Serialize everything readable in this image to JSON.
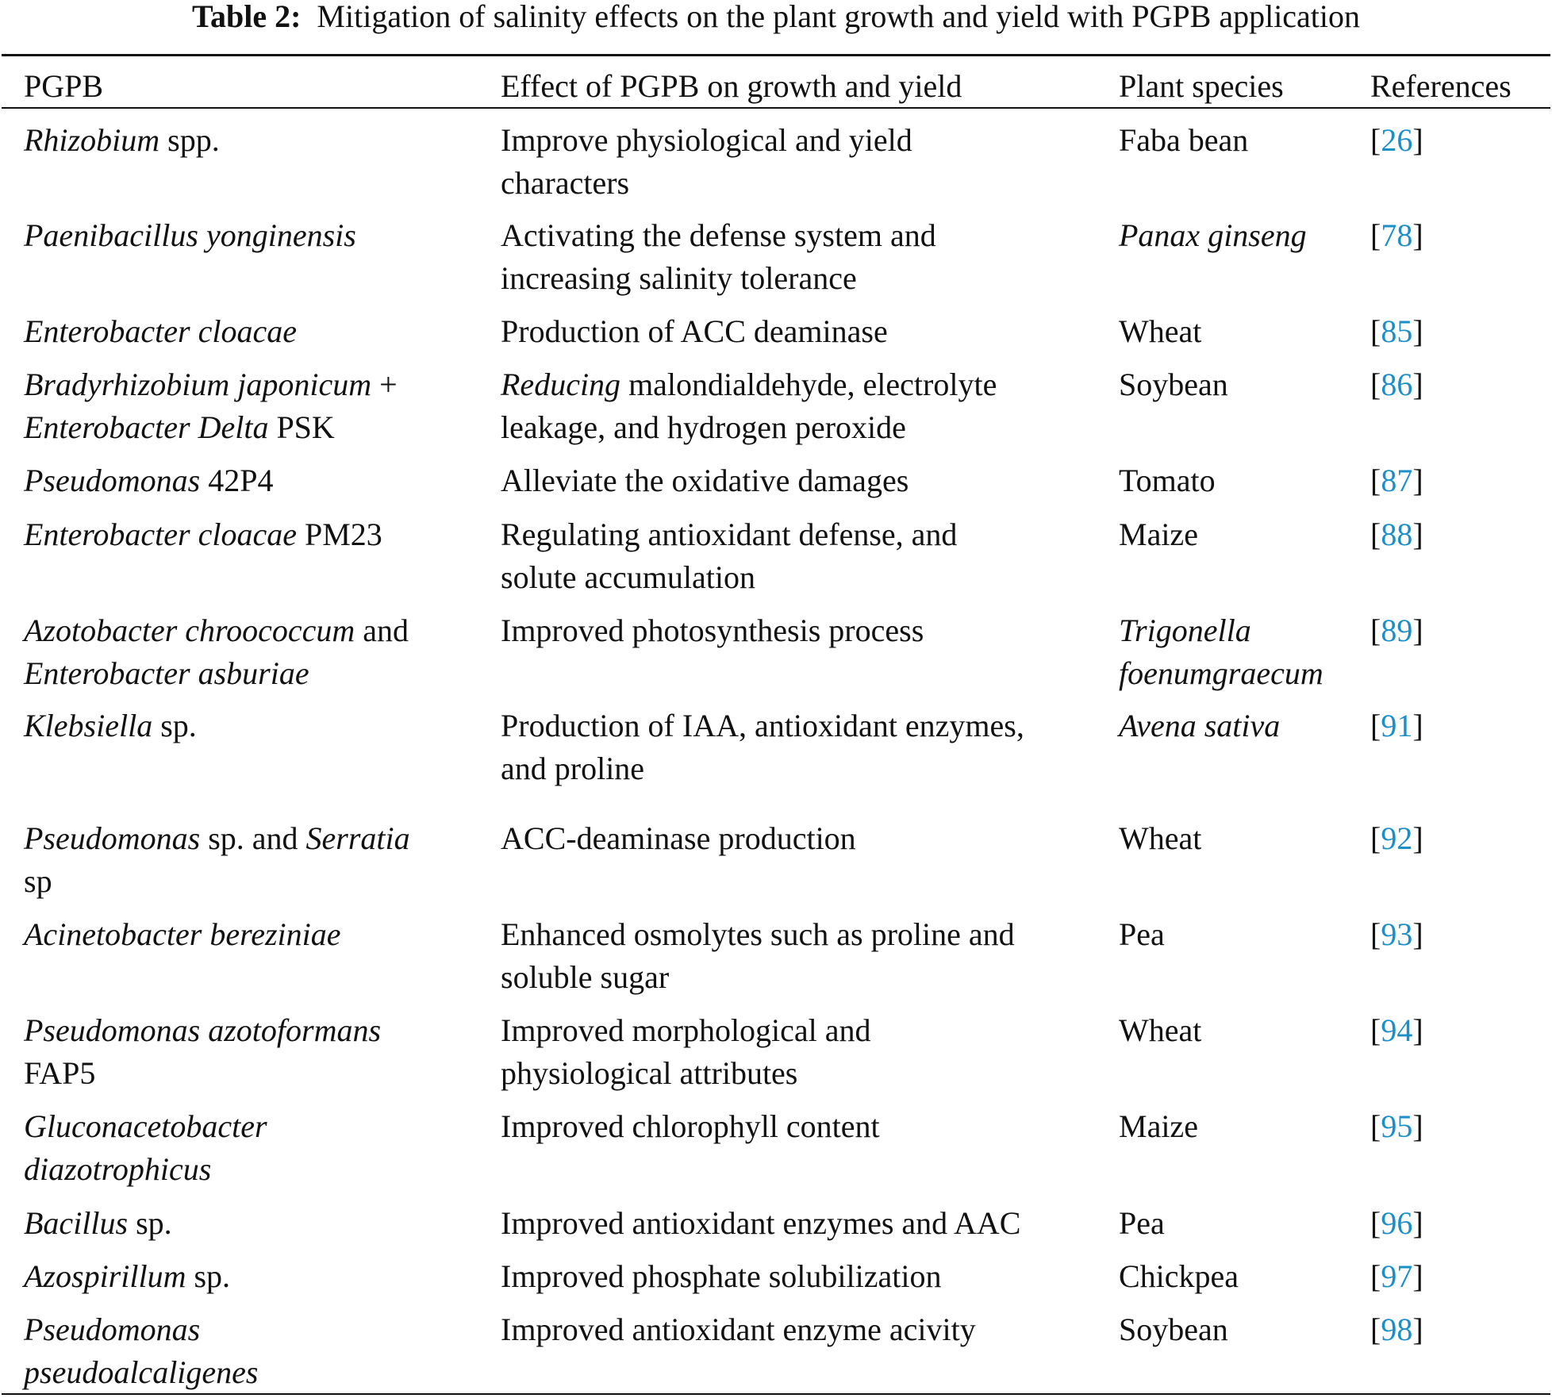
{
  "title": {
    "label": "Table 2:",
    "text": "Mitigation of salinity effects on the plant growth and yield with PGPB application"
  },
  "colors": {
    "reference_link": "#1a8fc9",
    "text": "#111111"
  },
  "headers": [
    "PGPB",
    "Effect of PGPB on growth and yield",
    "Plant species",
    "References"
  ],
  "rows": [
    {
      "pgpb": [
        [
          {
            "t": "Rhizobium",
            "i": true
          },
          {
            "t": " spp."
          }
        ]
      ],
      "effect": [
        [
          {
            "t": "Improve physiological and yield"
          }
        ],
        [
          {
            "t": "characters"
          }
        ]
      ],
      "species": [
        [
          {
            "t": "Faba bean"
          }
        ]
      ],
      "ref": "26"
    },
    {
      "pgpb": [
        [
          {
            "t": "Paenibacillus yonginensis",
            "i": true
          }
        ]
      ],
      "effect": [
        [
          {
            "t": "Activating the defense system and"
          }
        ],
        [
          {
            "t": "increasing salinity tolerance"
          }
        ]
      ],
      "species": [
        [
          {
            "t": "Panax ginseng",
            "i": true
          }
        ]
      ],
      "ref": "78"
    },
    {
      "pgpb": [
        [
          {
            "t": "Enterobacter cloacae",
            "i": true
          }
        ]
      ],
      "effect": [
        [
          {
            "t": "Production of ACC deaminase"
          }
        ]
      ],
      "species": [
        [
          {
            "t": "Wheat"
          }
        ]
      ],
      "ref": "85"
    },
    {
      "pgpb": [
        [
          {
            "t": "Bradyrhizobium japonicum",
            "i": true
          },
          {
            "t": " +"
          }
        ],
        [
          {
            "t": "Enterobacter Delta",
            "i": true
          },
          {
            "t": " PSK"
          }
        ]
      ],
      "effect": [
        [
          {
            "t": "Reducing",
            "i": true
          },
          {
            "t": " malondialdehyde, electrolyte"
          }
        ],
        [
          {
            "t": "leakage, and hydrogen peroxide"
          }
        ]
      ],
      "species": [
        [
          {
            "t": "Soybean"
          }
        ]
      ],
      "ref": "86"
    },
    {
      "pgpb": [
        [
          {
            "t": "Pseudomonas",
            "i": true
          },
          {
            "t": " 42P4"
          }
        ]
      ],
      "effect": [
        [
          {
            "t": "Alleviate the oxidative damages"
          }
        ]
      ],
      "species": [
        [
          {
            "t": "Tomato"
          }
        ]
      ],
      "ref": "87"
    },
    {
      "pgpb": [
        [
          {
            "t": "Enterobacter cloacae",
            "i": true
          },
          {
            "t": " PM23"
          }
        ]
      ],
      "effect": [
        [
          {
            "t": "Regulating antioxidant defense, and"
          }
        ],
        [
          {
            "t": "solute accumulation"
          }
        ]
      ],
      "species": [
        [
          {
            "t": "Maize"
          }
        ]
      ],
      "ref": "88"
    },
    {
      "pgpb": [
        [
          {
            "t": "Azotobacter chroococcum",
            "i": true
          },
          {
            "t": " and"
          }
        ],
        [
          {
            "t": "Enterobacter asburiae",
            "i": true
          }
        ]
      ],
      "effect": [
        [
          {
            "t": "Improved photosynthesis process"
          }
        ]
      ],
      "species": [
        [
          {
            "t": "Trigonella",
            "i": true
          }
        ],
        [
          {
            "t": "foenumgraecum",
            "i": true
          }
        ]
      ],
      "ref": "89"
    },
    {
      "pgpb": [
        [
          {
            "t": "Klebsiella",
            "i": true
          },
          {
            "t": " sp."
          }
        ]
      ],
      "effect": [
        [
          {
            "t": "Production of IAA, antioxidant enzymes,"
          }
        ],
        [
          {
            "t": "and proline"
          }
        ]
      ],
      "species": [
        [
          {
            "t": "Avena sativa",
            "i": true
          }
        ]
      ],
      "ref": "91"
    },
    {
      "pgpb": [
        [
          {
            "t": "Pseudomonas",
            "i": true
          },
          {
            "t": " sp. and "
          },
          {
            "t": "Serratia",
            "i": true
          }
        ],
        [
          {
            "t": "sp"
          }
        ]
      ],
      "effect": [
        [
          {
            "t": "ACC-deaminase production"
          }
        ]
      ],
      "species": [
        [
          {
            "t": "Wheat"
          }
        ]
      ],
      "ref": "92"
    },
    {
      "pgpb": [
        [
          {
            "t": "Acinetobacter bereziniae",
            "i": true
          }
        ]
      ],
      "effect": [
        [
          {
            "t": "Enhanced osmolytes such as proline and"
          }
        ],
        [
          {
            "t": "soluble sugar"
          }
        ]
      ],
      "species": [
        [
          {
            "t": "Pea"
          }
        ]
      ],
      "ref": "93"
    },
    {
      "pgpb": [
        [
          {
            "t": "Pseudomonas azotoformans",
            "i": true
          }
        ],
        [
          {
            "t": "FAP5"
          }
        ]
      ],
      "effect": [
        [
          {
            "t": "Improved morphological and"
          }
        ],
        [
          {
            "t": "physiological attributes"
          }
        ]
      ],
      "species": [
        [
          {
            "t": "Wheat"
          }
        ]
      ],
      "ref": "94"
    },
    {
      "pgpb": [
        [
          {
            "t": "Gluconacetobacter",
            "i": true
          }
        ],
        [
          {
            "t": "diazotrophicus",
            "i": true
          }
        ]
      ],
      "effect": [
        [
          {
            "t": "Improved chlorophyll content"
          }
        ]
      ],
      "species": [
        [
          {
            "t": "Maize"
          }
        ]
      ],
      "ref": "95"
    },
    {
      "pgpb": [
        [
          {
            "t": "Bacillus",
            "i": true
          },
          {
            "t": " sp."
          }
        ]
      ],
      "effect": [
        [
          {
            "t": "Improved antioxidant enzymes and AAC"
          }
        ]
      ],
      "species": [
        [
          {
            "t": "Pea"
          }
        ]
      ],
      "ref": "96"
    },
    {
      "pgpb": [
        [
          {
            "t": "Azospirillum",
            "i": true
          },
          {
            "t": " sp."
          }
        ]
      ],
      "effect": [
        [
          {
            "t": "Improved phosphate solubilization"
          }
        ]
      ],
      "species": [
        [
          {
            "t": "Chickpea"
          }
        ]
      ],
      "ref": "97"
    },
    {
      "pgpb": [
        [
          {
            "t": "Pseudomonas",
            "i": true
          }
        ],
        [
          {
            "t": "pseudoalcaligenes",
            "i": true
          }
        ]
      ],
      "effect": [
        [
          {
            "t": "Improved antioxidant enzyme acivity"
          }
        ]
      ],
      "species": [
        [
          {
            "t": "Soybean"
          }
        ]
      ],
      "ref": "98"
    }
  ]
}
